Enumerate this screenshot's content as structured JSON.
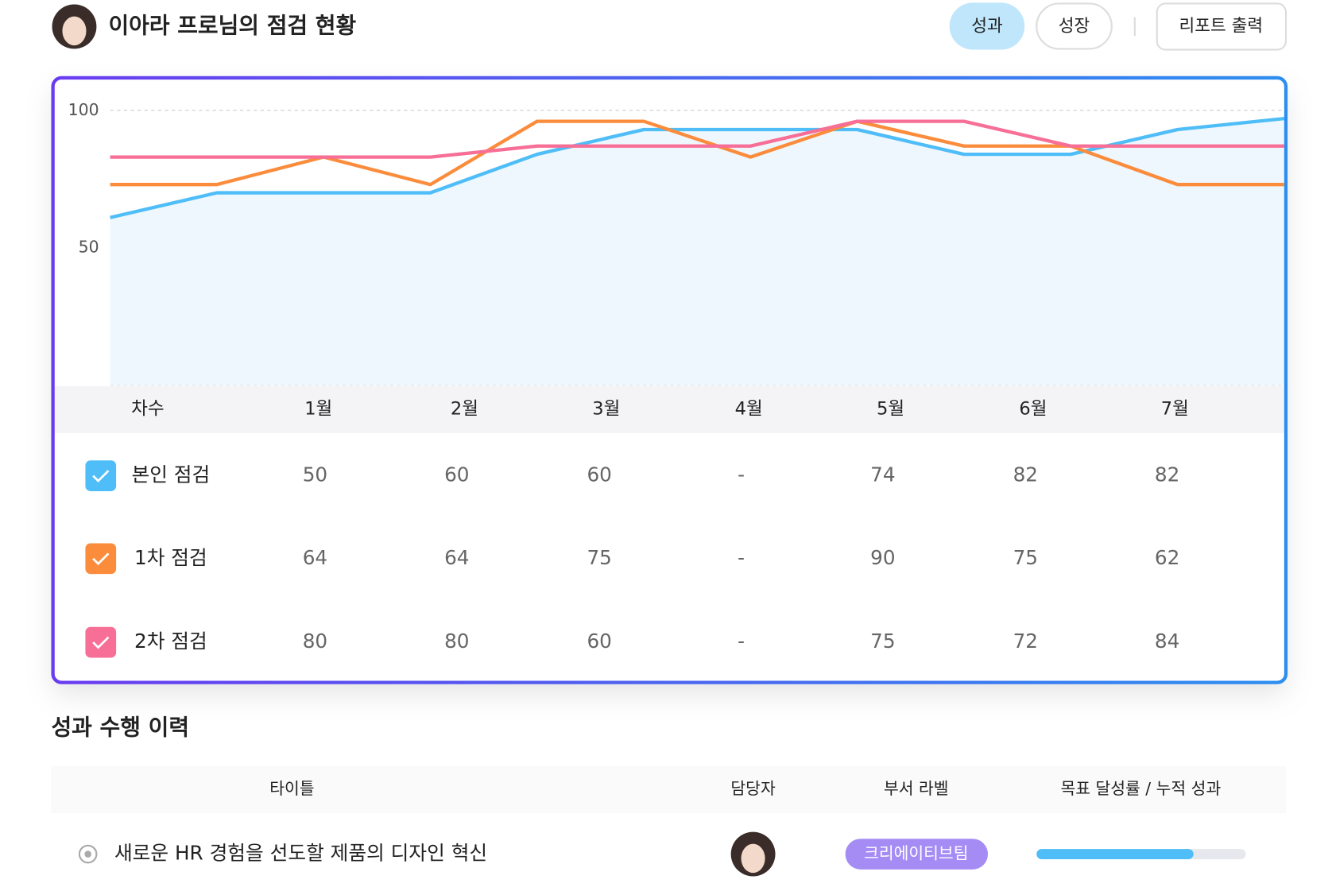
{
  "header": {
    "title": "이아라 프로님의 점검 현황",
    "buttons": [
      "성과",
      "성장"
    ],
    "report_button": "리포트 출력"
  },
  "chart_data": {
    "type": "line",
    "ylim": [
      0,
      100
    ],
    "yticks": [
      50,
      100
    ],
    "grid": true,
    "series": [
      {
        "name": "본인 점검",
        "color": "#4fbdf7",
        "area": true,
        "values": [
          61,
          70,
          70,
          70,
          84,
          93,
          93,
          93,
          84,
          84,
          93,
          97
        ]
      },
      {
        "name": "1차 점검",
        "color": "#fb8c3c",
        "values": [
          73,
          73,
          83,
          73,
          96,
          96,
          83,
          96,
          87,
          87,
          73,
          73
        ]
      },
      {
        "name": "2차 점검",
        "color": "#f76e96",
        "values": [
          83,
          83,
          83,
          83,
          87,
          87,
          87,
          96,
          96,
          87,
          87,
          87
        ]
      }
    ]
  },
  "table": {
    "header": [
      "차수",
      "1월",
      "2월",
      "3월",
      "4월",
      "5월",
      "6월",
      "7월"
    ],
    "rows": [
      [
        50,
        60,
        60,
        "-",
        74,
        82,
        82
      ],
      [
        64,
        64,
        75,
        "-",
        90,
        75,
        62
      ],
      [
        80,
        80,
        60,
        "-",
        75,
        72,
        84
      ]
    ]
  },
  "history": {
    "title": "성과 수행 이력",
    "columns": [
      "타이틀",
      "담당자",
      "부서 라벨",
      "목표 달성률 / 누적 성과"
    ],
    "rows": [
      {
        "title": "새로운 HR 경험을 선도할 제품의 디자인 혁신",
        "team": "크리에이티브팀",
        "progress": 75
      }
    ]
  }
}
